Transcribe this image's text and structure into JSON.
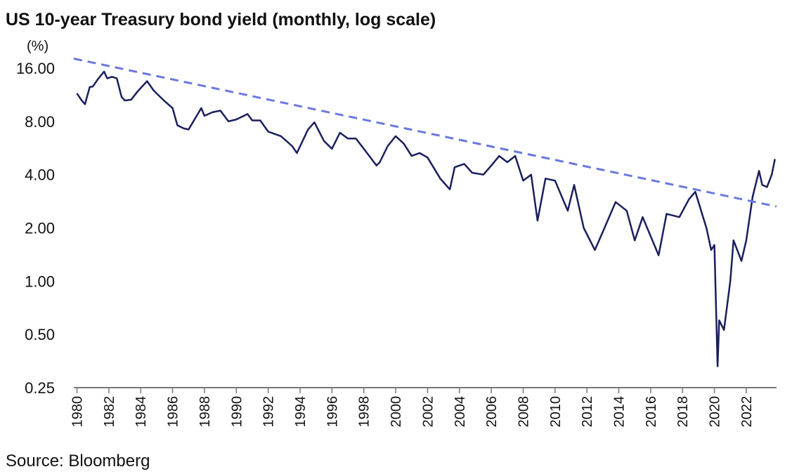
{
  "chart_data": {
    "type": "line",
    "title": "US 10-year Treasury bond yield (monthly, log scale)",
    "y_unit_label": "(%)",
    "source": "Source: Bloomberg",
    "log_scale_y": true,
    "xlim": [
      1979.8,
      2023.9
    ],
    "xticks": [
      1980,
      1982,
      1984,
      1986,
      1988,
      1990,
      1992,
      1994,
      1996,
      1998,
      2000,
      2002,
      2004,
      2006,
      2008,
      2010,
      2012,
      2014,
      2016,
      2018,
      2020,
      2022
    ],
    "ylim": [
      0.25,
      16
    ],
    "yticks": [
      {
        "value": 0.25,
        "label": "0.25"
      },
      {
        "value": 0.5,
        "label": "0.50"
      },
      {
        "value": 1,
        "label": "1.00"
      },
      {
        "value": 2,
        "label": "2.00"
      },
      {
        "value": 4,
        "label": "4.00"
      },
      {
        "value": 8,
        "label": "8.00"
      },
      {
        "value": 16,
        "label": "16.00"
      }
    ],
    "series": [
      {
        "color": "#1a1f5c",
        "style": "solid",
        "x": [
          1980.0,
          1980.3,
          1980.5,
          1980.8,
          1981.0,
          1981.3,
          1981.7,
          1981.9,
          1982.2,
          1982.5,
          1982.8,
          1983.0,
          1983.4,
          1983.8,
          1984.4,
          1984.8,
          1985.0,
          1985.5,
          1986.0,
          1986.3,
          1986.7,
          1987.0,
          1987.8,
          1988.0,
          1988.5,
          1989.0,
          1989.5,
          1990.0,
          1990.7,
          1991.0,
          1991.5,
          1992.0,
          1992.8,
          1993.5,
          1993.8,
          1994.5,
          1994.9,
          1995.5,
          1996.0,
          1996.5,
          1997.0,
          1997.5,
          1998.0,
          1998.8,
          1999.0,
          1999.5,
          2000.0,
          2000.5,
          2001.0,
          2001.5,
          2002.0,
          2002.8,
          2003.4,
          2003.7,
          2004.3,
          2004.8,
          2005.5,
          2006.0,
          2006.5,
          2007.0,
          2007.5,
          2008.0,
          2008.5,
          2008.9,
          2009.4,
          2010.0,
          2010.8,
          2011.2,
          2011.8,
          2012.5,
          2013.0,
          2013.8,
          2014.5,
          2015.0,
          2015.5,
          2016.5,
          2017.0,
          2017.8,
          2018.4,
          2018.8,
          2019.5,
          2019.8,
          2020.0,
          2020.2,
          2020.3,
          2020.6,
          2021.0,
          2021.2,
          2021.7,
          2022.0,
          2022.4,
          2022.8,
          2023.0,
          2023.3,
          2023.6,
          2023.8
        ],
        "values": [
          11.5,
          10.5,
          10.0,
          12.5,
          12.6,
          13.8,
          15.3,
          14.0,
          14.3,
          14.0,
          11.0,
          10.5,
          10.6,
          11.8,
          13.5,
          12.0,
          11.5,
          10.4,
          9.5,
          7.6,
          7.3,
          7.2,
          9.5,
          8.6,
          9.0,
          9.2,
          8.0,
          8.2,
          8.8,
          8.1,
          8.1,
          7.0,
          6.6,
          5.8,
          5.3,
          7.2,
          7.9,
          6.2,
          5.6,
          6.9,
          6.4,
          6.4,
          5.6,
          4.5,
          4.7,
          5.8,
          6.6,
          6.0,
          5.1,
          5.3,
          5.0,
          3.8,
          3.3,
          4.4,
          4.6,
          4.1,
          4.0,
          4.5,
          5.1,
          4.7,
          5.1,
          3.7,
          4.0,
          2.2,
          3.8,
          3.7,
          2.5,
          3.5,
          2.0,
          1.5,
          1.9,
          2.8,
          2.5,
          1.7,
          2.3,
          1.4,
          2.4,
          2.3,
          2.9,
          3.2,
          2.0,
          1.5,
          1.6,
          0.33,
          0.6,
          0.53,
          1.0,
          1.7,
          1.3,
          1.7,
          3.0,
          4.2,
          3.5,
          3.4,
          4.0,
          4.9
        ]
      },
      {
        "color": "#6a78e0",
        "style": "dashed",
        "x": [
          1979.8,
          2023.9
        ],
        "values": [
          18.1,
          2.64
        ]
      }
    ]
  }
}
